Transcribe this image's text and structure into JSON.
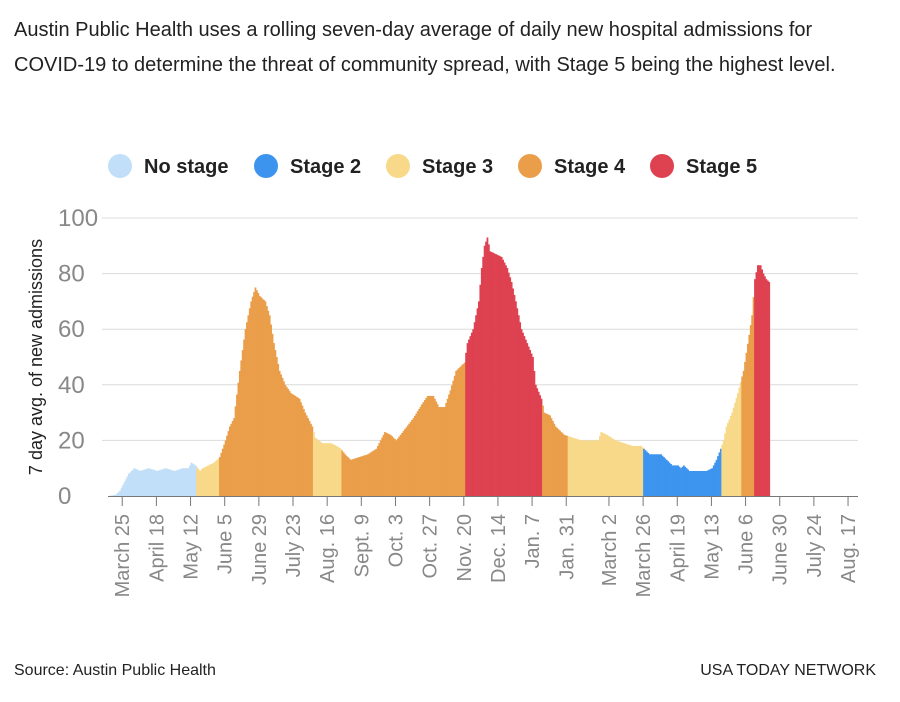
{
  "headline": "Austin Public Health uses a rolling seven-day average of daily new hospital admissions for COVID-19 to determine the threat of community spread, with Stage 5 being the highest level.",
  "footer": {
    "source": "Source: Austin Public Health",
    "credit": "USA TODAY NETWORK"
  },
  "chart_data": {
    "type": "bar",
    "title": "",
    "ylabel": "7 day avg. of new admissions",
    "xlabel": "",
    "ylim": [
      0,
      100
    ],
    "yticks": [
      0,
      20,
      40,
      60,
      80,
      100
    ],
    "grid": true,
    "legend_position": "top",
    "legend": [
      {
        "key": "none",
        "label": "No stage",
        "color": "#c2dff9"
      },
      {
        "key": "s2",
        "label": "Stage 2",
        "color": "#3d94ee"
      },
      {
        "key": "s3",
        "label": "Stage 3",
        "color": "#f8d98a"
      },
      {
        "key": "s4",
        "label": "Stage 4",
        "color": "#ea9e4a"
      },
      {
        "key": "s5",
        "label": "Stage 5",
        "color": "#de4150"
      }
    ],
    "x_tick_labels": [
      "March 25",
      "April 18",
      "May 12",
      "June 5",
      "June 29",
      "July 23",
      "Aug. 16",
      "Sept. 9",
      "Oct. 3",
      "Oct. 27",
      "Nov. 20",
      "Dec. 14",
      "Jan. 7",
      "Jan. 31",
      "March 2",
      "March 26",
      "April 19",
      "May 13",
      "June 6",
      "June 30",
      "July 24",
      "Aug. 17"
    ],
    "x_tick_days": [
      10,
      34,
      58,
      82,
      106,
      130,
      154,
      178,
      202,
      226,
      250,
      274,
      298,
      322,
      352,
      376,
      400,
      424,
      448,
      472,
      496,
      520
    ],
    "series": {
      "name": "7 day avg. of new admissions",
      "start_day": 0,
      "end_day": 527,
      "points": [
        [
          0,
          0
        ],
        [
          5,
          0.5
        ],
        [
          8,
          2
        ],
        [
          11,
          5
        ],
        [
          14,
          8
        ],
        [
          18,
          10
        ],
        [
          22,
          9
        ],
        [
          28,
          10
        ],
        [
          34,
          9
        ],
        [
          40,
          10
        ],
        [
          46,
          9
        ],
        [
          52,
          10
        ],
        [
          56,
          10
        ],
        [
          58,
          12
        ],
        [
          61,
          11
        ],
        [
          64,
          9
        ],
        [
          66,
          10
        ],
        [
          70,
          11
        ],
        [
          74,
          12
        ],
        [
          78,
          14
        ],
        [
          82,
          20
        ],
        [
          85,
          25
        ],
        [
          88,
          28
        ],
        [
          92,
          45
        ],
        [
          96,
          60
        ],
        [
          100,
          70
        ],
        [
          103,
          75
        ],
        [
          106,
          72
        ],
        [
          110,
          70
        ],
        [
          113,
          65
        ],
        [
          116,
          55
        ],
        [
          120,
          45
        ],
        [
          124,
          40
        ],
        [
          128,
          37
        ],
        [
          134,
          35
        ],
        [
          138,
          30
        ],
        [
          143,
          25
        ],
        [
          145,
          21
        ],
        [
          150,
          19
        ],
        [
          156,
          19
        ],
        [
          160,
          18
        ],
        [
          163,
          17
        ],
        [
          166,
          15
        ],
        [
          170,
          13
        ],
        [
          176,
          14
        ],
        [
          182,
          15
        ],
        [
          188,
          17
        ],
        [
          191,
          20
        ],
        [
          194,
          23
        ],
        [
          198,
          22
        ],
        [
          202,
          20
        ],
        [
          208,
          24
        ],
        [
          214,
          28
        ],
        [
          220,
          33
        ],
        [
          224,
          36
        ],
        [
          228,
          36
        ],
        [
          232,
          32
        ],
        [
          236,
          32
        ],
        [
          240,
          38
        ],
        [
          244,
          45
        ],
        [
          248,
          47
        ],
        [
          250,
          48
        ],
        [
          252,
          55
        ],
        [
          256,
          60
        ],
        [
          260,
          70
        ],
        [
          262,
          82
        ],
        [
          264,
          90
        ],
        [
          266,
          93
        ],
        [
          268,
          88
        ],
        [
          272,
          87
        ],
        [
          276,
          86
        ],
        [
          280,
          82
        ],
        [
          283,
          77
        ],
        [
          286,
          70
        ],
        [
          288,
          65
        ],
        [
          290,
          60
        ],
        [
          294,
          55
        ],
        [
          298,
          50
        ],
        [
          300,
          40
        ],
        [
          304,
          35
        ],
        [
          306,
          30
        ],
        [
          310,
          29
        ],
        [
          314,
          25
        ],
        [
          316,
          24
        ],
        [
          320,
          22
        ],
        [
          326,
          21
        ],
        [
          332,
          20
        ],
        [
          338,
          20
        ],
        [
          344,
          20
        ],
        [
          346,
          23
        ],
        [
          350,
          22
        ],
        [
          356,
          20
        ],
        [
          362,
          19
        ],
        [
          368,
          18
        ],
        [
          374,
          18
        ],
        [
          376,
          17
        ],
        [
          380,
          15
        ],
        [
          384,
          15
        ],
        [
          388,
          15
        ],
        [
          392,
          13
        ],
        [
          396,
          11
        ],
        [
          400,
          11
        ],
        [
          402,
          10
        ],
        [
          404,
          11
        ],
        [
          408,
          9
        ],
        [
          412,
          9
        ],
        [
          416,
          9
        ],
        [
          420,
          9
        ],
        [
          424,
          10
        ],
        [
          427,
          13
        ],
        [
          430,
          17
        ],
        [
          432,
          20
        ],
        [
          434,
          25
        ],
        [
          438,
          30
        ],
        [
          442,
          37
        ],
        [
          446,
          45
        ],
        [
          450,
          58
        ],
        [
          452,
          65
        ],
        [
          454,
          78
        ],
        [
          456,
          83
        ],
        [
          458,
          83
        ],
        [
          460,
          80
        ],
        [
          462,
          78
        ],
        [
          464,
          77
        ]
      ],
      "stage_segments": [
        {
          "stage": "none",
          "from": 0,
          "to": 62
        },
        {
          "stage": "s3",
          "from": 62,
          "to": 78
        },
        {
          "stage": "s4",
          "from": 78,
          "to": 144
        },
        {
          "stage": "s3",
          "from": 144,
          "to": 164
        },
        {
          "stage": "s4",
          "from": 164,
          "to": 251
        },
        {
          "stage": "s5",
          "from": 251,
          "to": 305
        },
        {
          "stage": "s4",
          "from": 305,
          "to": 323
        },
        {
          "stage": "s3",
          "from": 323,
          "to": 376
        },
        {
          "stage": "s2",
          "from": 376,
          "to": 431
        },
        {
          "stage": "s3",
          "from": 431,
          "to": 445
        },
        {
          "stage": "s4",
          "from": 445,
          "to": 454
        },
        {
          "stage": "s5",
          "from": 454,
          "to": 465
        }
      ]
    }
  }
}
